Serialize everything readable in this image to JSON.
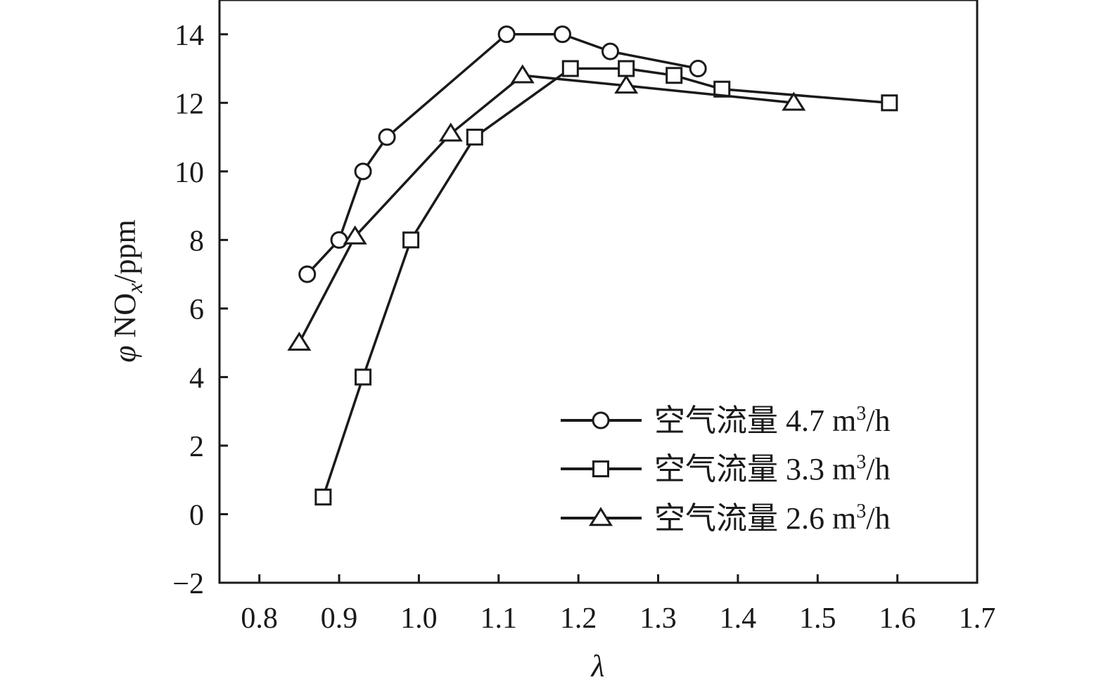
{
  "chart_data": {
    "type": "line",
    "xlabel": "λ",
    "ylabel_prefix": "φ",
    "ylabel_main": "NO",
    "ylabel_sub": "x",
    "ylabel_unit": "/ppm",
    "xlim": [
      0.75,
      1.7
    ],
    "ylim": [
      -2,
      15
    ],
    "x_ticks": [
      0.8,
      0.9,
      1.0,
      1.1,
      1.2,
      1.3,
      1.4,
      1.5,
      1.6,
      1.7
    ],
    "x_tick_labels": [
      "0.8",
      "0.9",
      "1.0",
      "1.1",
      "1.2",
      "1.3",
      "1.4",
      "1.5",
      "1.6",
      "1.7"
    ],
    "y_ticks": [
      -2,
      0,
      2,
      4,
      6,
      8,
      10,
      12,
      14
    ],
    "y_tick_labels": [
      "−2",
      "0",
      "2",
      "4",
      "6",
      "8",
      "10",
      "12",
      "14"
    ],
    "grid": false,
    "legend_position": "bottom-right",
    "series": [
      {
        "name": "空气流量 4.7 m³/h",
        "label_main": "空气流量 4.7 m",
        "label_sup": "3",
        "label_tail": "/h",
        "marker": "circle",
        "x": [
          0.86,
          0.9,
          0.93,
          0.96,
          1.11,
          1.18,
          1.24,
          1.35
        ],
        "y": [
          7.0,
          8.0,
          10.0,
          11.0,
          14.0,
          14.0,
          13.5,
          13.0
        ]
      },
      {
        "name": "空气流量 3.3 m³/h",
        "label_main": "空气流量 3.3 m",
        "label_sup": "3",
        "label_tail": "/h",
        "marker": "square",
        "x": [
          0.88,
          0.93,
          0.99,
          1.07,
          1.19,
          1.26,
          1.32,
          1.38,
          1.59
        ],
        "y": [
          0.5,
          4.0,
          8.0,
          11.0,
          13.0,
          13.0,
          12.8,
          12.4,
          12.0
        ]
      },
      {
        "name": "空气流量 2.6 m³/h",
        "label_main": "空气流量 2.6 m",
        "label_sup": "3",
        "label_tail": "/h",
        "marker": "triangle",
        "x": [
          0.85,
          0.92,
          1.04,
          1.13,
          1.26,
          1.47
        ],
        "y": [
          5.0,
          8.1,
          11.1,
          12.8,
          12.5,
          12.0
        ]
      }
    ]
  }
}
